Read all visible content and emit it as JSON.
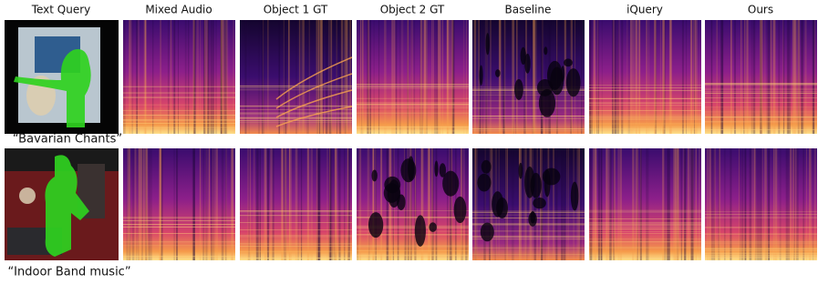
{
  "columns": [
    "Text Query",
    "Mixed Audio",
    "Object 1 GT",
    "Object 2 GT",
    "Baseline",
    "iQuery",
    "Ours"
  ],
  "rows": [
    {
      "caption": "“Bavarian Chants”"
    },
    {
      "caption": "“Indoor Band music”"
    }
  ]
}
